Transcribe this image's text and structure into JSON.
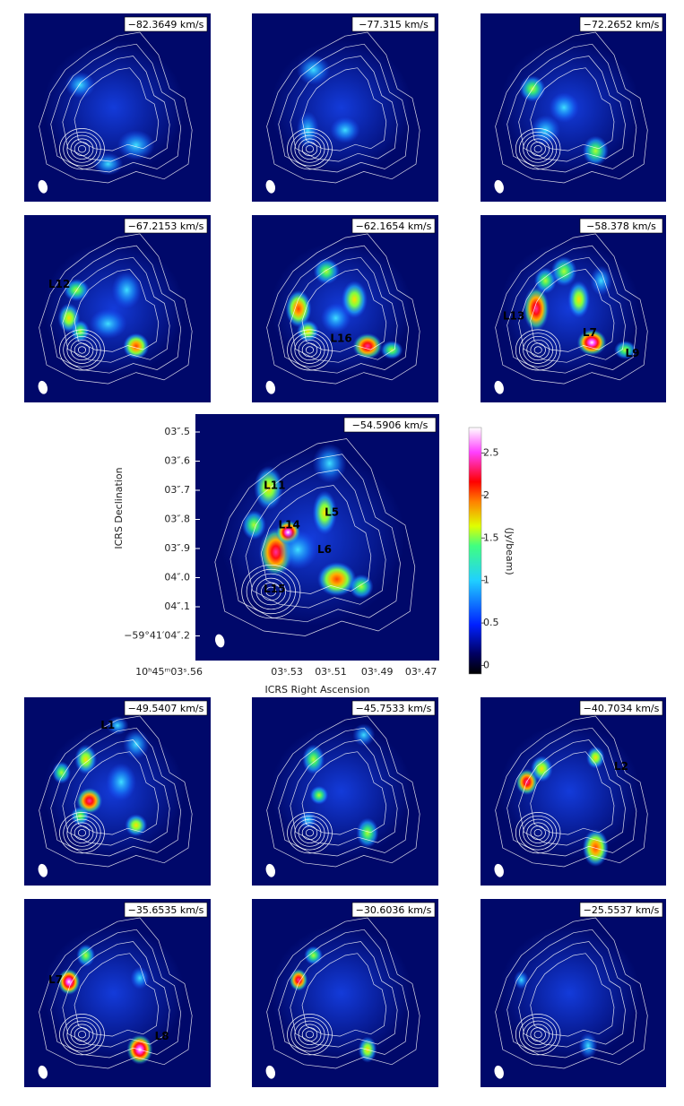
{
  "panels": [
    {
      "velocity": "−82.3649 km/s",
      "labels": []
    },
    {
      "velocity": "−77.315 km/s",
      "labels": []
    },
    {
      "velocity": "−72.2652 km/s",
      "labels": []
    },
    {
      "velocity": "−67.2153 km/s",
      "labels": [
        "L12"
      ]
    },
    {
      "velocity": "−62.1654 km/s",
      "labels": [
        "L16"
      ]
    },
    {
      "velocity": "−58.378 km/s",
      "labels": [
        "L13",
        "L7",
        "L9"
      ]
    },
    {
      "velocity": "−54.5906 km/s",
      "labels": [
        "L11",
        "L14",
        "L5",
        "L6",
        "L15"
      ]
    },
    {
      "velocity": "−49.5407 km/s",
      "labels": [
        "L1"
      ]
    },
    {
      "velocity": "−45.7533 km/s",
      "labels": []
    },
    {
      "velocity": "−40.7034 km/s",
      "labels": [
        "L2"
      ]
    },
    {
      "velocity": "−35.6535 km/s",
      "labels": [
        "L7",
        "L8"
      ]
    },
    {
      "velocity": "−30.6036 km/s",
      "labels": []
    },
    {
      "velocity": "−25.5537 km/s",
      "labels": []
    }
  ],
  "axes": {
    "y_label": "ICRS Declination",
    "x_label": "ICRS Right Ascension",
    "y_ticks": [
      "03″.5",
      "03″.6",
      "03″.7",
      "03″.8",
      "03″.9",
      "04″.0",
      "04″.1",
      "−59°41′04″.2"
    ],
    "x_ticks": [
      "10ʰ45ᵐ03ˢ.56",
      "03ˢ.53",
      "03ˢ.51",
      "03ˢ.49",
      "03ˢ.47"
    ]
  },
  "colorbar": {
    "label": "(Jy/beam)",
    "lim": [
      -0.1,
      2.8
    ],
    "ticks": [
      0,
      0.5,
      1,
      1.5,
      2,
      2.5
    ]
  }
}
